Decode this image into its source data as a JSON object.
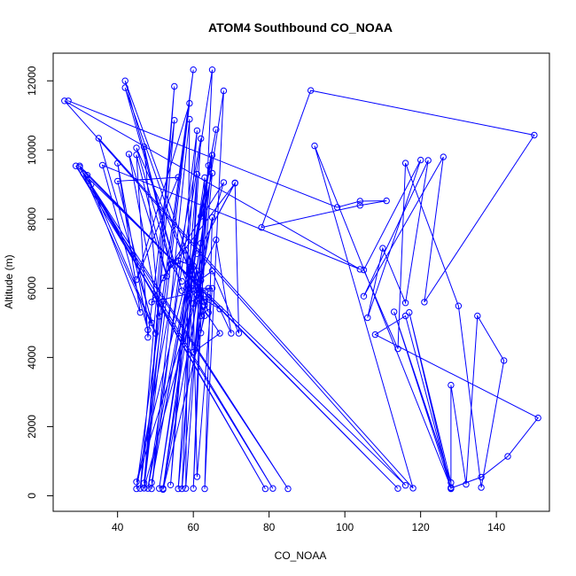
{
  "chart_data": {
    "type": "line",
    "title": "ATOM4 Southbound CO_NOAA",
    "xlabel": "CO_NOAA",
    "ylabel": "Altitude (m)",
    "xlim": [
      23,
      154
    ],
    "ylim": [
      -450,
      12800
    ],
    "xticks": [
      40,
      60,
      80,
      100,
      120,
      140
    ],
    "yticks": [
      0,
      2000,
      4000,
      6000,
      8000,
      10000,
      12000
    ],
    "grid": false,
    "marker": "open-circle",
    "color": "#0000FF",
    "series": [
      {
        "points": [
          [
            27,
            11420
          ],
          [
            98,
            8340
          ],
          [
            104,
            8520
          ],
          [
            111,
            8530
          ],
          [
            104,
            8400
          ],
          [
            78,
            7760
          ],
          [
            91,
            11720
          ],
          [
            150,
            10430
          ],
          [
            121,
            5600
          ],
          [
            126,
            9800
          ],
          [
            105,
            5770
          ],
          [
            122,
            9700
          ],
          [
            116,
            5580
          ],
          [
            110,
            7160
          ],
          [
            106,
            5150
          ],
          [
            120,
            9710
          ],
          [
            105,
            6530
          ],
          [
            114,
            4250
          ],
          [
            116,
            9620
          ],
          [
            130,
            5490
          ],
          [
            136,
            240
          ],
          [
            142,
            3910
          ],
          [
            135,
            5200
          ],
          [
            132,
            330
          ],
          [
            128,
            3200
          ],
          [
            128,
            220
          ],
          [
            136,
            540
          ],
          [
            143,
            1140
          ],
          [
            151,
            2250
          ],
          [
            108,
            4660
          ],
          [
            116,
            5200
          ],
          [
            128,
            200
          ],
          [
            117,
            5300
          ],
          [
            128,
            380
          ],
          [
            113,
            5320
          ],
          [
            128,
            240
          ],
          [
            92,
            10120
          ],
          [
            118,
            220
          ],
          [
            35,
            10340
          ],
          [
            50,
            4700
          ],
          [
            30,
            9540
          ],
          [
            114,
            210
          ],
          [
            30,
            9500
          ],
          [
            85,
            200
          ],
          [
            29,
            9540
          ],
          [
            81,
            210
          ],
          [
            33,
            9000
          ],
          [
            79,
            200
          ],
          [
            31,
            9320
          ],
          [
            116,
            300
          ],
          [
            26,
            11420
          ],
          [
            104,
            6550
          ],
          [
            36,
            9560
          ],
          [
            48,
            4800
          ],
          [
            40,
            9620
          ],
          [
            46,
            5300
          ],
          [
            32,
            9270
          ],
          [
            49,
            5000
          ],
          [
            40,
            9100
          ],
          [
            56,
            9210
          ],
          [
            45,
            6250
          ],
          [
            59,
            11350
          ],
          [
            47,
            220
          ],
          [
            55,
            11840
          ],
          [
            46,
            210
          ],
          [
            60,
            12320
          ],
          [
            45,
            200
          ],
          [
            62,
            10330
          ],
          [
            56,
            200
          ],
          [
            64,
            9550
          ],
          [
            58,
            210
          ],
          [
            59,
            10890
          ],
          [
            49,
            200
          ],
          [
            61,
            10560
          ],
          [
            54,
            310
          ],
          [
            61,
            9300
          ],
          [
            57,
            200
          ],
          [
            65,
            9850
          ],
          [
            49,
            380
          ],
          [
            66,
            10590
          ],
          [
            48,
            210
          ],
          [
            65,
            12320
          ],
          [
            60,
            210
          ],
          [
            63,
            9200
          ],
          [
            51,
            210
          ],
          [
            62,
            8080
          ],
          [
            52,
            210
          ],
          [
            68,
            11710
          ],
          [
            63,
            200
          ],
          [
            65,
            8050
          ],
          [
            52,
            180
          ],
          [
            63,
            5210
          ],
          [
            42,
            11800
          ],
          [
            57,
            5930
          ],
          [
            42,
            12000
          ],
          [
            64,
            5300
          ],
          [
            45,
            10060
          ],
          [
            54,
            6680
          ],
          [
            47,
            10090
          ],
          [
            51,
            5190
          ],
          [
            43,
            9880
          ],
          [
            53,
            6350
          ],
          [
            45,
            9860
          ],
          [
            48,
            4580
          ],
          [
            55,
            10860
          ],
          [
            47,
            370
          ],
          [
            52,
            5630
          ],
          [
            47,
            220
          ],
          [
            62,
            6230
          ],
          [
            45,
            400
          ],
          [
            65,
            9330
          ],
          [
            61,
            4270
          ],
          [
            62,
            7300
          ],
          [
            60,
            6000
          ],
          [
            68,
            9060
          ],
          [
            52,
            6300
          ],
          [
            71,
            9040
          ],
          [
            61,
            7000
          ],
          [
            71,
            9050
          ],
          [
            72,
            4700
          ],
          [
            65,
            6500
          ],
          [
            61,
            6180
          ],
          [
            66,
            7400
          ],
          [
            70,
            4700
          ],
          [
            67,
            5400
          ],
          [
            61,
            5800
          ],
          [
            64,
            5740
          ],
          [
            62,
            5200
          ],
          [
            62,
            6400
          ],
          [
            63,
            5500
          ],
          [
            63,
            5600
          ],
          [
            59,
            6600
          ],
          [
            59,
            6000
          ],
          [
            56,
            6800
          ],
          [
            60,
            6650
          ],
          [
            62,
            4710
          ],
          [
            64,
            6000
          ],
          [
            59,
            6000
          ],
          [
            67,
            4700
          ],
          [
            60,
            4150
          ],
          [
            58,
            7100
          ],
          [
            61,
            6500
          ],
          [
            60,
            5560
          ],
          [
            61,
            550
          ],
          [
            65,
            6000
          ],
          [
            49,
            5600
          ],
          [
            54,
            6700
          ],
          [
            57,
            6200
          ]
        ]
      }
    ]
  }
}
